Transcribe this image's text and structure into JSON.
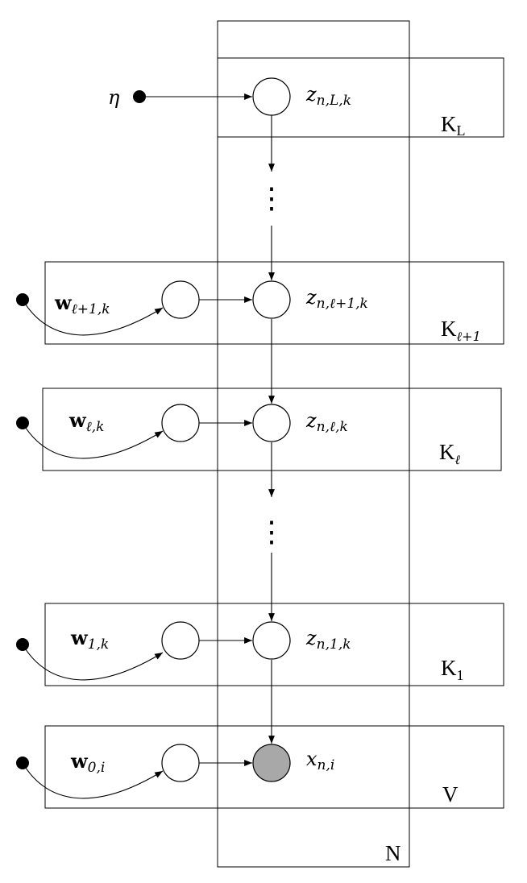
{
  "plates": {
    "N": "N",
    "KL": {
      "base": "K",
      "sub": "L"
    },
    "Klp1": {
      "base": "K",
      "sub": "ℓ+1"
    },
    "Kl": {
      "base": "K",
      "sub": "ℓ"
    },
    "K1": {
      "base": "K",
      "sub": "1"
    },
    "V": "V"
  },
  "nodes": {
    "eta": "η",
    "zL": {
      "base": "z",
      "sub": "n,L,k"
    },
    "zlp1": {
      "base": "z",
      "sub": "n,ℓ+1,k"
    },
    "zl": {
      "base": "z",
      "sub": "n,ℓ,k"
    },
    "z1": {
      "base": "z",
      "sub": "n,1,k"
    },
    "x": {
      "base": "x",
      "sub": "n,i"
    },
    "wlp1": {
      "base": "w",
      "sub": "ℓ+1,k"
    },
    "wl": {
      "base": "w",
      "sub": "ℓ,k"
    },
    "w1": {
      "base": "w",
      "sub": "1,k"
    },
    "w0": {
      "base": "w",
      "sub": "0,i"
    }
  },
  "ellipsis": "⋮",
  "observed_fill": "#a8a8a8"
}
